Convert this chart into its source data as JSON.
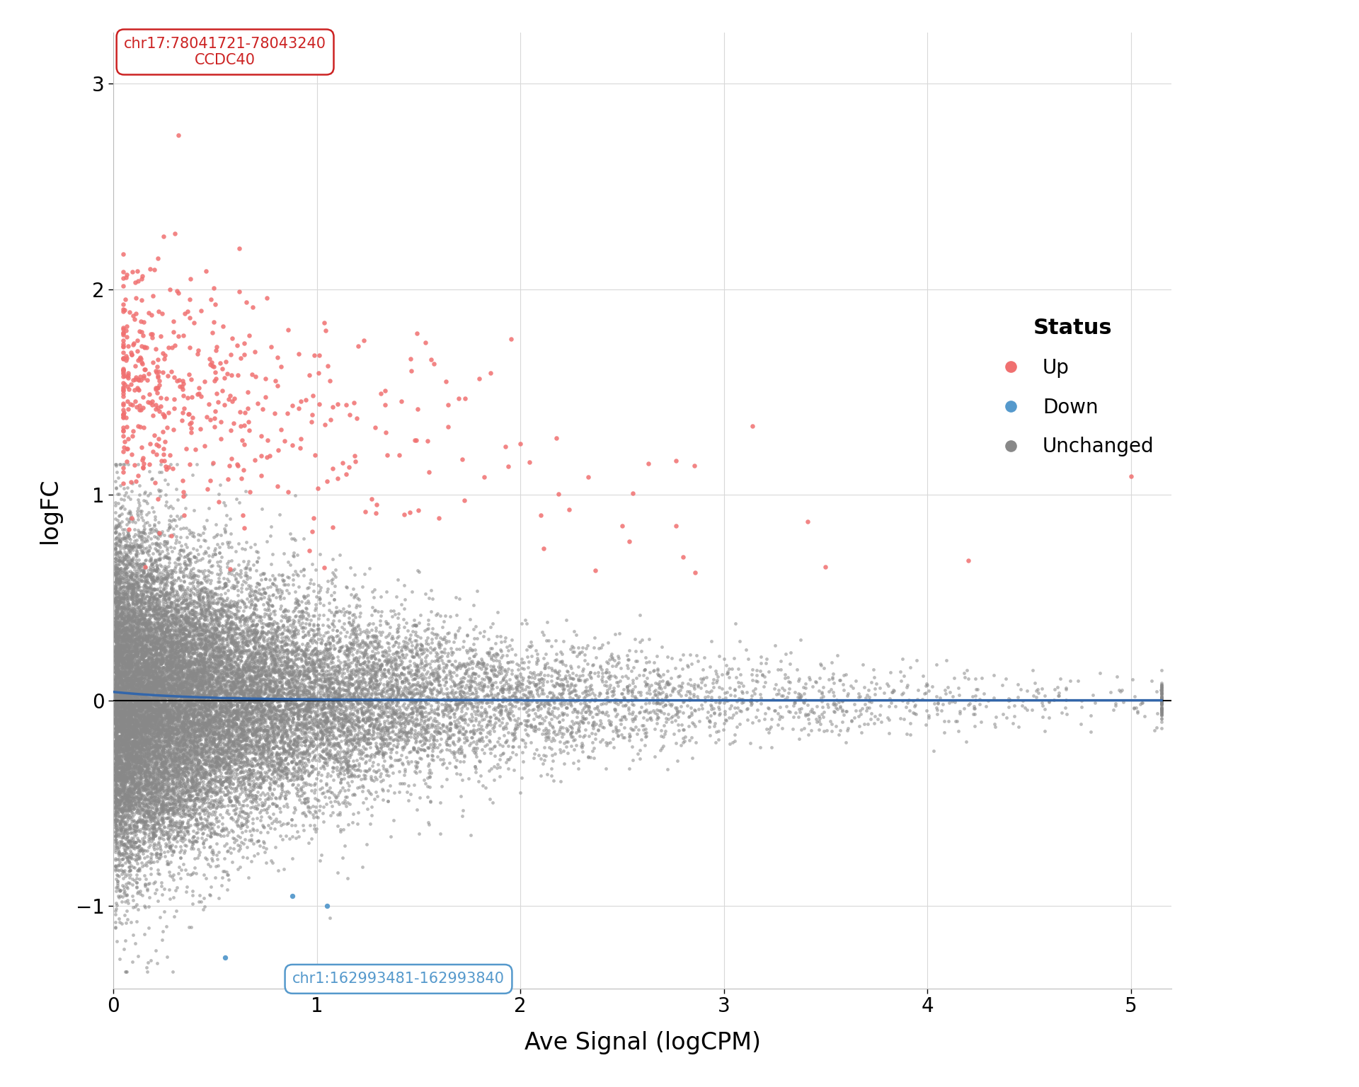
{
  "title": "",
  "xlabel": "Ave Signal (logCPM)",
  "ylabel": "logFC",
  "xlim": [
    0,
    5.2
  ],
  "ylim": [
    -1.4,
    3.25
  ],
  "xticks": [
    0,
    1,
    2,
    3,
    4,
    5
  ],
  "yticks": [
    -1,
    0,
    1,
    2,
    3
  ],
  "background_color": "#ffffff",
  "panel_background": "#ffffff",
  "grid_color": "#d8d8d8",
  "up_color": "#f07070",
  "down_color": "#5599cc",
  "unchanged_color": "#888888",
  "hline_color": "#000000",
  "curve_color": "#3366aa",
  "annotation_up_text": "chr17:78041721-78043240\nCCDC40",
  "annotation_up_box_color": "#cc2222",
  "annotation_down_text": "chr1:162993481-162993840",
  "annotation_down_box_color": "#5599cc",
  "legend_title": "Status",
  "legend_entries": [
    "Up",
    "Down",
    "Unchanged"
  ],
  "legend_colors": [
    "#f07070",
    "#5599cc",
    "#888888"
  ],
  "n_unchanged": 25000,
  "n_up": 500,
  "n_down": 3,
  "point_size_unchanged": 12,
  "point_size_up": 22,
  "point_size_down": 28,
  "alpha_unchanged": 0.55,
  "alpha_up": 0.85,
  "alpha_down": 0.95,
  "font_size_axis_label": 24,
  "font_size_tick_label": 20,
  "font_size_legend_title": 22,
  "font_size_legend": 20,
  "font_size_annotation": 15
}
